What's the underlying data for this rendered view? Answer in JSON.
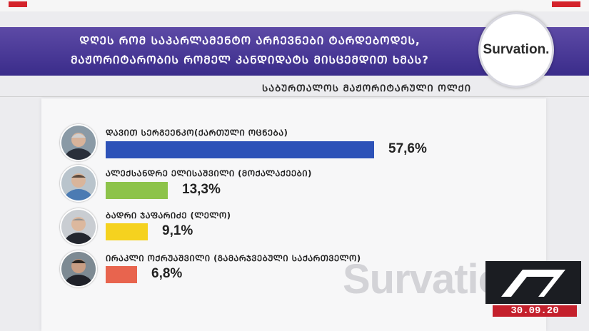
{
  "header": {
    "question_line1": "ᲓᲦᲔᲡ ᲠᲝᲛ ᲡᲐᲞᲐᲠᲚᲐᲛᲔᲜᲢᲝ ᲐᲠᲩᲔᲕᲜᲔᲑᲘ ᲢᲐᲠᲓᲔᲑᲝᲓᲔᲡ,",
    "question_line2": "ᲛᲐᲟᲝᲠᲘᲢᲐᲠᲝᲑᲘᲡ ᲠᲝᲛᲔᲚ ᲙᲐᲜᲓᲘᲓᲐᲢᲡ ᲛᲘᲡᲪᲔᲛᲓᲘᲗ ᲮᲛᲐᲡ?",
    "logo": "Survation."
  },
  "subtitle": "ᲡᲐᲑᲣᲠᲗᲐᲚᲝᲡ ᲛᲐᲟᲝᲠᲘᲢᲐᲠᲣᲚᲘ ᲝᲚᲥᲘ",
  "candidates": [
    {
      "name": "ᲓᲐᲕᲘᲗ ᲡᲔᲠᲒᲔᲔᲜᲙᲝ(ᲥᲐᲠᲗᲣᲚᲘ ᲝᲪᲜᲔᲑᲐ)",
      "pct_label": "57,6%",
      "value": 57.6,
      "color": "#2d52b8"
    },
    {
      "name": "ᲐᲚᲔᲥᲡᲐᲜᲓᲠᲔ ᲔᲚᲘᲡᲐᲨᲕᲘᲚᲘ (ᲛᲝᲥᲐᲚᲐᲥᲔᲔᲑᲘ)",
      "pct_label": "13,3%",
      "value": 13.3,
      "color": "#8dc34a"
    },
    {
      "name": "ᲑᲐᲓᲠᲘ ᲯᲐᲤᲐᲠᲘᲫᲔ (ᲚᲔᲚᲝ)",
      "pct_label": "9,1%",
      "value": 9.1,
      "color": "#f5d21f"
    },
    {
      "name": "ᲘᲠᲐᲙᲚᲘ ᲝᲥᲠᲣᲐᲨᲕᲘᲚᲘ (ᲒᲐᲛᲐᲠᲯᲕᲔᲑᲣᲚᲘ ᲡᲐᲥᲐᲠᲗᲕᲔᲚᲝ)",
      "pct_label": "6,8%",
      "value": 6.8,
      "color": "#e8644e"
    }
  ],
  "watermark": "Survatio",
  "date": "30.09.20"
}
